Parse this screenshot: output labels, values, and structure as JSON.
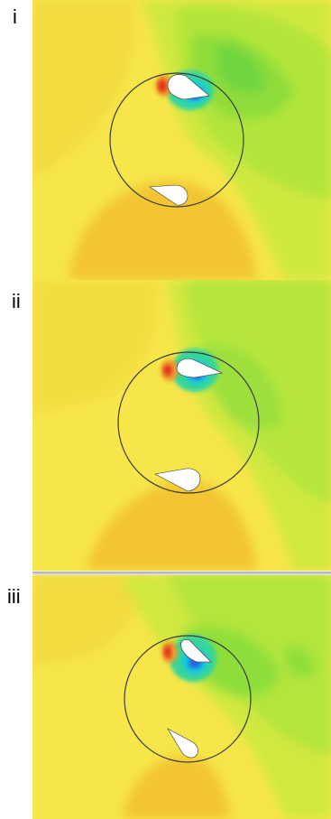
{
  "panels": [
    {
      "label": "i"
    },
    {
      "label": "ii"
    },
    {
      "label": "iii"
    }
  ],
  "colors": {
    "background_field": "#f8e94a",
    "high_pressure": "#e8321a",
    "low_pressure": "#17c9e6",
    "mid_green": "#9ee23a",
    "deficit_orange": "#f4c634",
    "rotor_circle": "#3a3a3a",
    "blade_fill": "#ffffff"
  }
}
